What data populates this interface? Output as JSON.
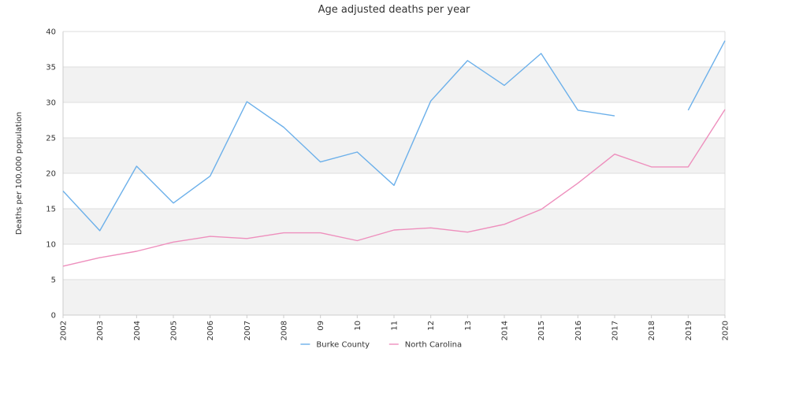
{
  "chart_data": {
    "type": "line",
    "title": "Age adjusted deaths per year",
    "xlabel": "",
    "ylabel": "Deaths per 100,000 population",
    "ylim": [
      0,
      40
    ],
    "yticks": [
      "0",
      "5",
      "10",
      "15",
      "20",
      "25",
      "30",
      "35",
      "40"
    ],
    "categories": [
      "2002",
      "2003",
      "2004",
      "2005",
      "2006",
      "2007",
      "2008",
      "09",
      "10",
      "11",
      "12",
      "13",
      "2014",
      "2015",
      "2016",
      "2017",
      "2018",
      "2019",
      "2020"
    ],
    "series": [
      {
        "name": "Burke County",
        "color": "#6cb0ea",
        "values": [
          17.5,
          11.9,
          21.0,
          15.8,
          19.6,
          30.1,
          26.5,
          21.6,
          23.0,
          18.3,
          30.2,
          35.9,
          32.4,
          36.9,
          28.9,
          28.1,
          null,
          28.9,
          38.7
        ]
      },
      {
        "name": "North Carolina",
        "color": "#ee8fbd",
        "values": [
          6.9,
          8.1,
          9.0,
          10.3,
          11.1,
          10.8,
          11.6,
          11.6,
          10.5,
          12.0,
          12.3,
          11.7,
          12.8,
          14.9,
          18.6,
          22.7,
          20.9,
          20.9,
          29.0
        ]
      }
    ],
    "grid": true,
    "legend": "bottom-center",
    "band_color": "#f2f2f2",
    "grid_color": "#dddddd"
  }
}
